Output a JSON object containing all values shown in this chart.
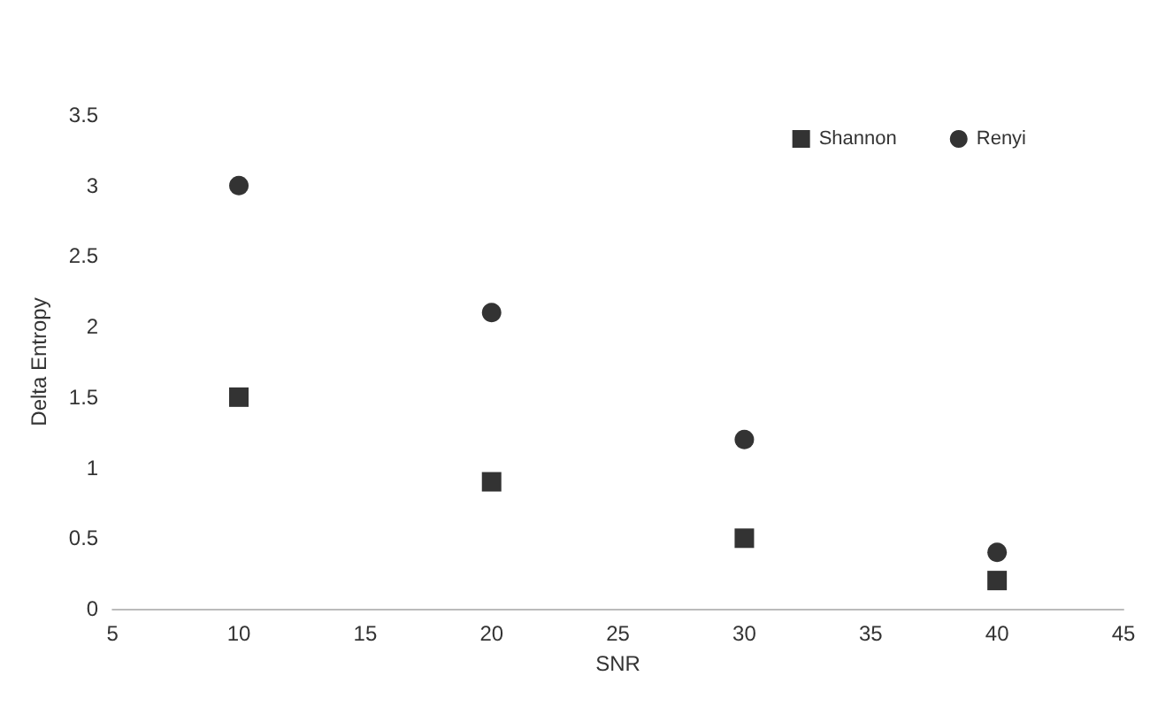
{
  "chart_data": {
    "type": "scatter",
    "xlabel": "SNR",
    "ylabel": "Delta Entropy",
    "x": [
      10,
      20,
      30,
      40
    ],
    "series": [
      {
        "name": "Shannon",
        "color": "#000000",
        "marker": "square",
        "values": [
          1.5,
          0.9,
          0.5,
          0.2
        ]
      },
      {
        "name": "Renyi",
        "color": "#000000",
        "marker": "circle",
        "values": [
          3,
          2.1,
          1.2,
          0.4
        ]
      }
    ],
    "xlim": [
      5,
      45
    ],
    "xticks": [
      5,
      10,
      15,
      20,
      25,
      30,
      35,
      40,
      45
    ],
    "ylim": [
      0,
      3.5
    ],
    "yticks": [
      0,
      0.5,
      1,
      1.5,
      2,
      2.5,
      3,
      3.5
    ],
    "grid": false,
    "legend": "top right"
  }
}
